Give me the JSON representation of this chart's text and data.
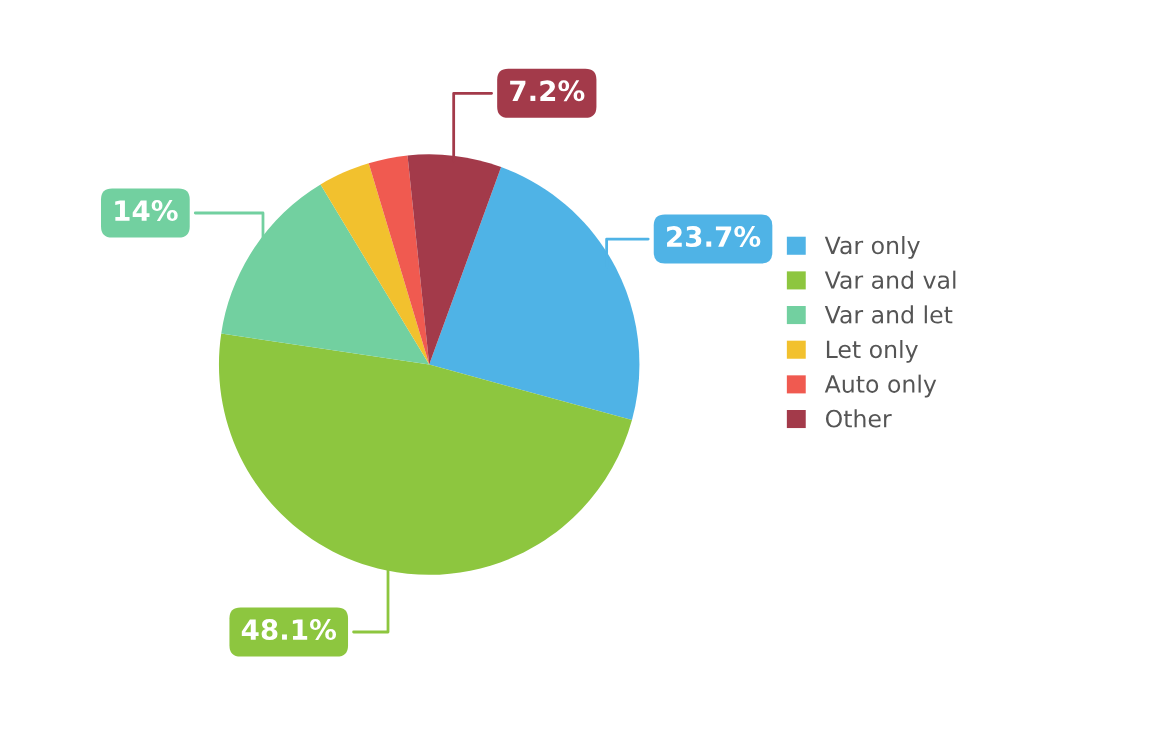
{
  "chart_data": {
    "type": "pie",
    "categories": [
      "Var only",
      "Var and val",
      "Var and let",
      "Let only",
      "Auto only",
      "Other"
    ],
    "values": [
      23.7,
      48.1,
      14,
      4,
      3,
      7.2
    ],
    "value_labels": [
      "23.7%",
      "48.1%",
      "14%",
      null,
      null,
      "7.2%"
    ],
    "colors": [
      "#4fb3e6",
      "#8dc63f",
      "#72d0a0",
      "#f2c12e",
      "#f05a50",
      "#a33a4a"
    ],
    "legend": "right"
  }
}
